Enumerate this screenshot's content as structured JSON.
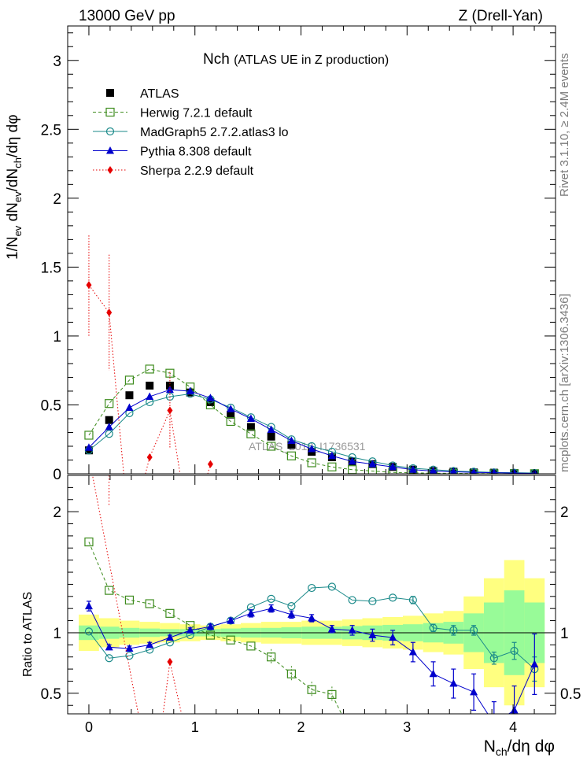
{
  "header": {
    "left": "13000 GeV pp",
    "right": "Z (Drell-Yan)"
  },
  "side_text": {
    "rivet": "Rivet 3.1.10, ≥ 2.4M events",
    "mcplots": "mcplots.cern.ch [arXiv:1306.3436]"
  },
  "watermark": "ATLAS_2019_I1736531",
  "chart_data": [
    {
      "type": "scatter",
      "title_main": "Nch",
      "title_sub": "(ATLAS UE in Z production)",
      "ylabel": "1/N_ev dN_ev/dN_ch/dη dφ",
      "xlim": [
        -0.2,
        4.4
      ],
      "ylim": [
        0,
        3.25
      ],
      "yticks": [
        "0",
        "0.5",
        "1",
        "1.5",
        "2",
        "2.5",
        "3"
      ],
      "legend_position": "top-left",
      "x": [
        0,
        0.191,
        0.382,
        0.573,
        0.764,
        0.955,
        1.146,
        1.337,
        1.528,
        1.719,
        1.91,
        2.101,
        2.292,
        2.483,
        2.674,
        2.865,
        3.056,
        3.247,
        3.438,
        3.629,
        3.82,
        4.011,
        4.202
      ],
      "series": [
        {
          "name": "ATLAS",
          "color": "#000000",
          "marker": "filled-square",
          "values": [
            0.17,
            0.39,
            0.57,
            0.64,
            0.64,
            0.59,
            0.52,
            0.43,
            0.34,
            0.27,
            0.21,
            0.16,
            0.12,
            0.09,
            0.07,
            0.05,
            0.03,
            0.02,
            0.015,
            0.01,
            0.008,
            0.005,
            0.003
          ]
        },
        {
          "name": "Herwig 7.2.1 default",
          "color": "#3e8c1e",
          "marker": "open-square",
          "line": "dashed",
          "values": [
            0.28,
            0.51,
            0.68,
            0.76,
            0.73,
            0.63,
            0.5,
            0.38,
            0.29,
            0.2,
            0.13,
            0.08,
            0.05,
            0.03,
            0.02,
            0.01,
            0.007,
            0.004,
            0.003,
            0.002,
            0.001,
            0.001,
            0.001
          ]
        },
        {
          "name": "MadGraph5 2.7.2.atlas3 lo",
          "color": "#1b8a8a",
          "marker": "open-circle",
          "line": "solid",
          "values": [
            0.17,
            0.29,
            0.44,
            0.52,
            0.56,
            0.58,
            0.54,
            0.48,
            0.41,
            0.34,
            0.25,
            0.2,
            0.16,
            0.12,
            0.09,
            0.06,
            0.04,
            0.03,
            0.02,
            0.015,
            0.01,
            0.008,
            0.006
          ]
        },
        {
          "name": "Pythia 8.308 default",
          "color": "#0000cc",
          "marker": "filled-triangle",
          "line": "solid",
          "values": [
            0.19,
            0.34,
            0.48,
            0.56,
            0.61,
            0.6,
            0.55,
            0.47,
            0.4,
            0.32,
            0.24,
            0.18,
            0.13,
            0.09,
            0.07,
            0.05,
            0.03,
            0.02,
            0.015,
            0.01,
            0.008,
            0.005,
            0.003
          ]
        },
        {
          "name": "Sherpa 2.2.9 default",
          "color": "#e60000",
          "marker": "filled-diamond",
          "line": "dotted",
          "values": [
            1.37,
            1.17,
            null,
            0.12,
            0.46,
            null,
            0.07
          ],
          "err_low": [
            0.37,
            0.42,
            null,
            0.0,
            0.28,
            null,
            0.0
          ],
          "err_high": [
            0.36,
            0.42,
            null,
            0.0,
            0.28,
            null,
            0.0
          ],
          "dips_below_axis": [
            0.382,
            0.955
          ]
        }
      ]
    },
    {
      "type": "scatter",
      "ylabel": "Ratio to ATLAS",
      "xlabel": "N_ch/dη dφ",
      "xlim": [
        -0.2,
        4.4
      ],
      "ylim": [
        0.33,
        2.3
      ],
      "xticks": [
        "0",
        "1",
        "2",
        "3",
        "4"
      ],
      "yticks": [
        "0.5",
        "1",
        "2"
      ],
      "reference_line": 1,
      "uncertainty_band_outer": [
        0.15,
        0.12,
        0.1,
        0.09,
        0.08,
        0.07,
        0.06,
        0.07,
        0.08,
        0.09,
        0.09,
        0.1,
        0.1,
        0.11,
        0.12,
        0.13,
        0.14,
        0.16,
        0.18,
        0.3,
        0.45,
        0.6,
        0.45
      ],
      "uncertainty_band_inner": [
        0.06,
        0.05,
        0.04,
        0.035,
        0.03,
        0.03,
        0.03,
        0.035,
        0.04,
        0.04,
        0.045,
        0.05,
        0.05,
        0.055,
        0.06,
        0.065,
        0.07,
        0.08,
        0.09,
        0.16,
        0.25,
        0.35,
        0.25
      ],
      "series": [
        {
          "name": "Herwig 7.2.1 default",
          "values": [
            1.75,
            1.35,
            1.27,
            1.24,
            1.16,
            1.06,
            0.98,
            0.94,
            0.89,
            0.8,
            0.66,
            0.53,
            0.49
          ]
        },
        {
          "name": "MadGraph5 2.7.2.atlas3 lo",
          "values": [
            1.01,
            0.79,
            0.81,
            0.86,
            0.92,
            0.98,
            1.05,
            1.1,
            1.21,
            1.28,
            1.22,
            1.37,
            1.38,
            1.27,
            1.26,
            1.29,
            1.27,
            1.04,
            1.02,
            1.02,
            0.79,
            0.85,
            0.7
          ],
          "err": [
            0,
            0,
            0,
            0,
            0,
            0,
            0,
            0,
            0,
            0,
            0,
            0,
            0,
            0,
            0,
            0,
            0.03,
            0.03,
            0.04,
            0.04,
            0.05,
            0.07,
            0.1
          ]
        },
        {
          "name": "Pythia 8.308 default",
          "values": [
            1.22,
            0.88,
            0.87,
            0.9,
            0.96,
            1.02,
            1.05,
            1.1,
            1.16,
            1.2,
            1.15,
            1.12,
            1.03,
            1.02,
            0.98,
            0.96,
            0.84,
            0.66,
            0.58,
            0.51,
            0.25,
            0.36,
            0.74
          ],
          "err": [
            0.04,
            0.02,
            0.02,
            0.02,
            0.02,
            0.02,
            0.02,
            0.02,
            0.03,
            0.03,
            0.03,
            0.03,
            0.03,
            0.04,
            0.05,
            0.06,
            0.08,
            0.1,
            0.12,
            0.15,
            0.18,
            0.2,
            0.25
          ]
        },
        {
          "name": "Sherpa 2.2.9 default",
          "values": [
            null,
            null,
            null,
            null,
            0.76
          ],
          "err": [
            null,
            null,
            null,
            null,
            0.0
          ]
        }
      ]
    }
  ]
}
